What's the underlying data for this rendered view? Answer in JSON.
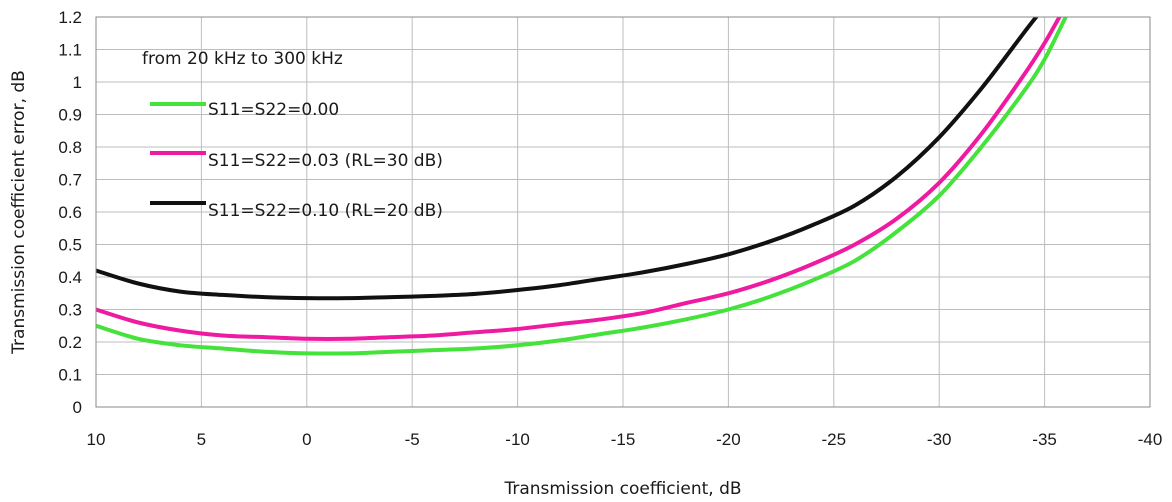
{
  "chart_data": {
    "type": "line",
    "title": "",
    "annotation": "from 20 kHz to 300 kHz",
    "xlabel": "Transmission coefficient, dB",
    "ylabel": "Transmission coefficient error, dB",
    "xlim": [
      10,
      -40
    ],
    "ylim": [
      0,
      1.2
    ],
    "x_ticks": [
      "10",
      "5",
      "0",
      "-5",
      "-10",
      "-15",
      "-20",
      "-25",
      "-30",
      "-35",
      "-40"
    ],
    "y_ticks": [
      "0",
      "0.1",
      "0.2",
      "0.3",
      "0.4",
      "0.5",
      "0.6",
      "0.7",
      "0.8",
      "0.9",
      "1",
      "1.1",
      "1.2"
    ],
    "grid": true,
    "legend_position": "top-left",
    "series": [
      {
        "name": "S11=S22=0.00",
        "color": "#44e23a",
        "x": [
          10,
          8,
          6,
          4,
          2,
          0,
          -2,
          -4,
          -6,
          -8,
          -10,
          -12,
          -14,
          -16,
          -18,
          -20,
          -22,
          -24,
          -26,
          -28,
          -30,
          -32,
          -34,
          -35,
          -36
        ],
        "y": [
          0.25,
          0.21,
          0.19,
          0.18,
          0.17,
          0.165,
          0.165,
          0.17,
          0.175,
          0.18,
          0.19,
          0.205,
          0.225,
          0.245,
          0.27,
          0.3,
          0.34,
          0.39,
          0.45,
          0.54,
          0.65,
          0.8,
          0.97,
          1.07,
          1.2
        ]
      },
      {
        "name": "S11=S22=0.03 (RL=30 dB)",
        "color": "#ee1aa0",
        "x": [
          10,
          8,
          6,
          4,
          2,
          0,
          -2,
          -4,
          -6,
          -8,
          -10,
          -12,
          -14,
          -16,
          -18,
          -20,
          -22,
          -24,
          -26,
          -28,
          -30,
          -32,
          -34,
          -35,
          -35.7
        ],
        "y": [
          0.3,
          0.26,
          0.235,
          0.22,
          0.215,
          0.21,
          0.21,
          0.215,
          0.22,
          0.23,
          0.24,
          0.255,
          0.27,
          0.29,
          0.32,
          0.35,
          0.39,
          0.44,
          0.5,
          0.58,
          0.69,
          0.84,
          1.02,
          1.12,
          1.2
        ]
      },
      {
        "name": "S11=S22=0.10 (RL=20 dB)",
        "color": "#111111",
        "x": [
          10,
          8,
          6,
          4,
          2,
          0,
          -2,
          -4,
          -6,
          -8,
          -10,
          -12,
          -14,
          -16,
          -18,
          -20,
          -22,
          -24,
          -26,
          -28,
          -30,
          -32,
          -34,
          -34.6
        ],
        "y": [
          0.42,
          0.38,
          0.355,
          0.345,
          0.338,
          0.335,
          0.335,
          0.338,
          0.342,
          0.348,
          0.36,
          0.375,
          0.395,
          0.415,
          0.44,
          0.47,
          0.51,
          0.56,
          0.62,
          0.71,
          0.83,
          0.98,
          1.15,
          1.2
        ]
      }
    ]
  }
}
